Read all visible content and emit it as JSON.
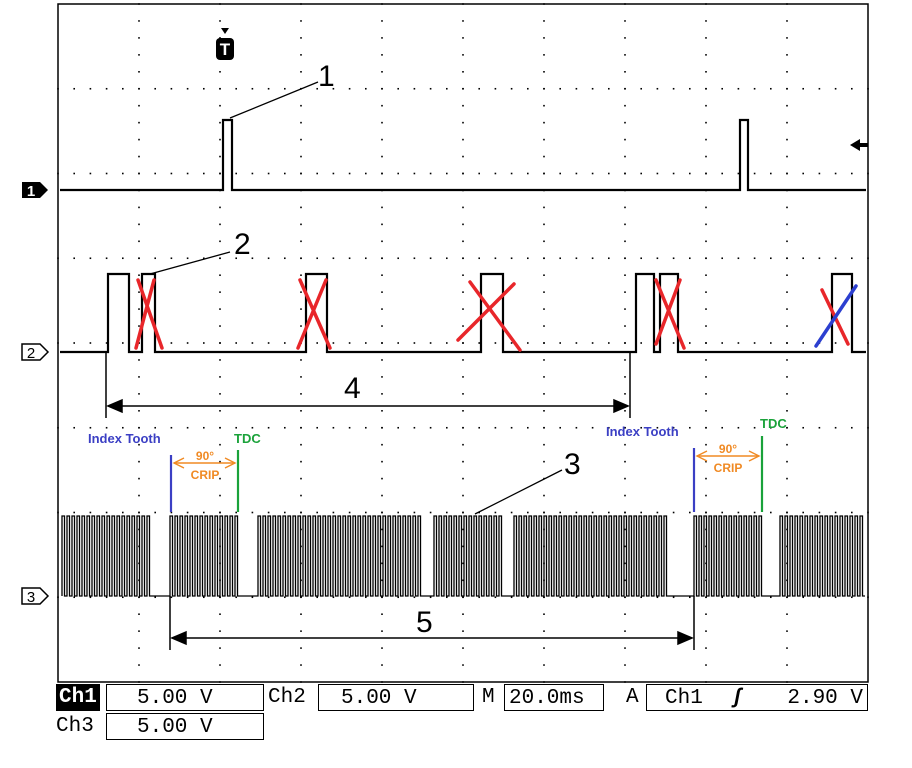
{
  "trigger_marker": "T",
  "channel_markers": [
    "1",
    "2",
    "3"
  ],
  "callouts": [
    "1",
    "2",
    "3",
    "4",
    "5"
  ],
  "annotations": {
    "index_tooth_left": "Index Tooth",
    "index_tooth_right": "Index Tooth",
    "tdc_left": "TDC",
    "tdc_right": "TDC",
    "angle_left": "90°",
    "angle_right": "90°",
    "crip_left": "CRIP",
    "crip_right": "CRIP"
  },
  "colors": {
    "index_tooth": "#3b3fc4",
    "tdc": "#1aa23a",
    "angle": "#f08a24",
    "cross_red": "#e8262a",
    "cross_blue": "#2c3fd0"
  },
  "status": {
    "ch1_label": "Ch1",
    "ch1_value": "5.00 V",
    "ch2_label": "Ch2",
    "ch2_value": "5.00 V",
    "ch3_label": "Ch3",
    "ch3_value": "5.00 V",
    "time_label": "M",
    "time_value": "20.0ms",
    "trigger_label": "A",
    "trigger_source": "Ch1",
    "trigger_slope": "ʃ",
    "trigger_level": "2.90 V"
  }
}
